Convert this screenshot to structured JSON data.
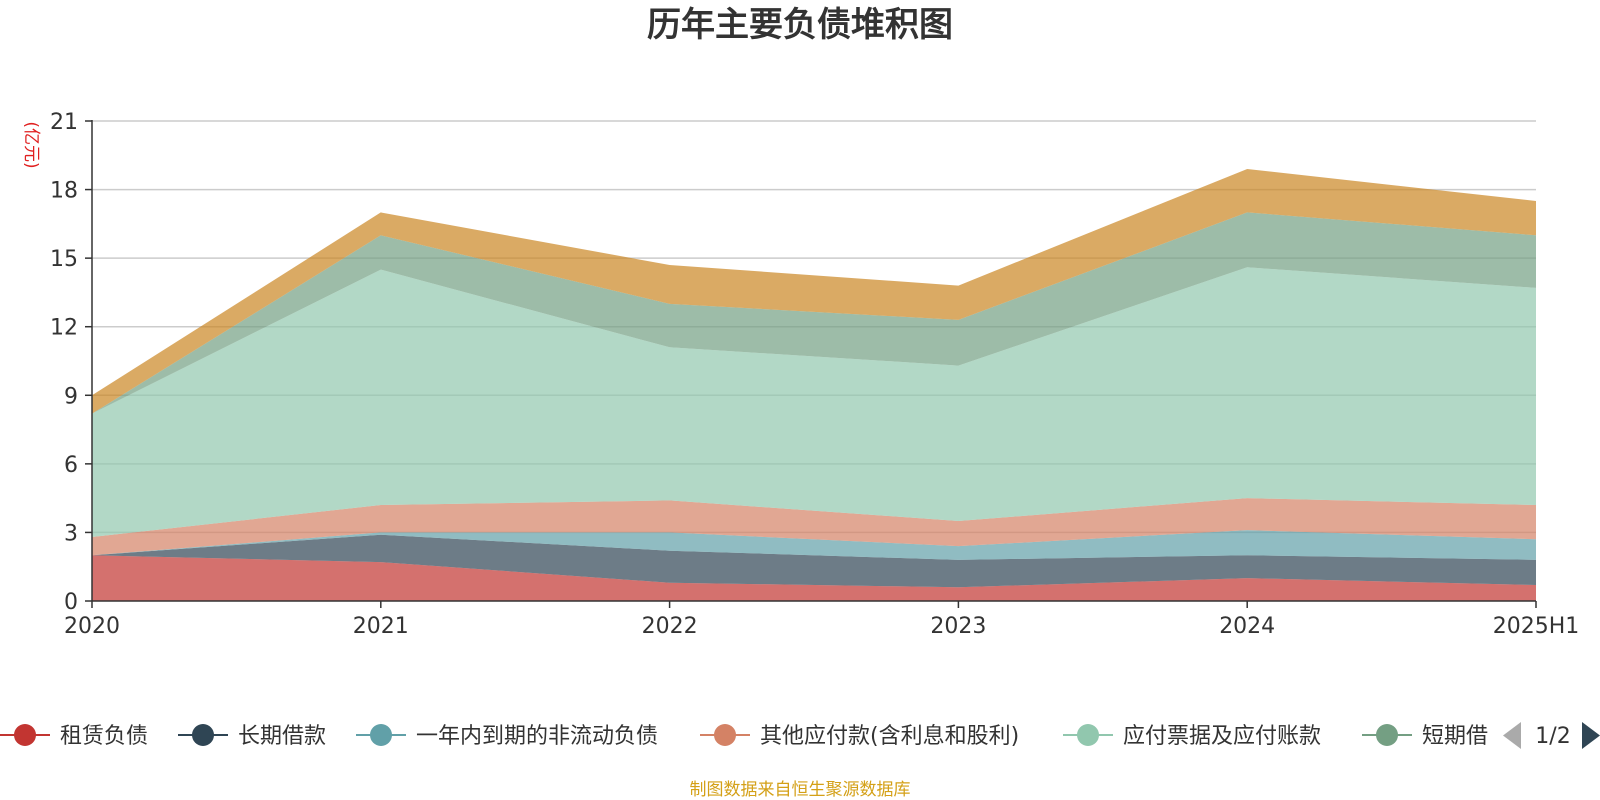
{
  "chart_data": {
    "type": "area",
    "stacked": true,
    "title": "历年主要负债堆积图",
    "unit_label": "(亿元)",
    "categories": [
      "2020",
      "2021",
      "2022",
      "2023",
      "2024",
      "2025H1"
    ],
    "ylim": [
      0,
      21
    ],
    "yticks": [
      "0",
      "3",
      "6",
      "9",
      "12",
      "15",
      "18",
      "21"
    ],
    "grid": true,
    "series": [
      {
        "name": "租赁负债",
        "color": "#c23531",
        "values": [
          2.0,
          1.7,
          0.8,
          0.6,
          1.0,
          0.7
        ]
      },
      {
        "name": "长期借款",
        "color": "#2f4554",
        "values": [
          0.0,
          1.2,
          1.4,
          1.2,
          1.0,
          1.1
        ]
      },
      {
        "name": "一年内到期的非流动负债",
        "color": "#61a0a8",
        "values": [
          0.0,
          0.1,
          0.8,
          0.6,
          1.1,
          0.9
        ]
      },
      {
        "name": "其他应付款(含利息和股利)",
        "color": "#d48265",
        "values": [
          0.8,
          1.2,
          1.4,
          1.1,
          1.4,
          1.5
        ]
      },
      {
        "name": "应付票据及应付账款",
        "color": "#91c7ae",
        "values": [
          5.4,
          10.3,
          6.7,
          6.8,
          10.1,
          9.5
        ]
      },
      {
        "name": "短期借款",
        "color": "#749f83",
        "values": [
          0.0,
          1.5,
          1.9,
          2.0,
          2.4,
          2.3
        ]
      },
      {
        "name": "",
        "color": "#ca8622",
        "values": [
          0.8,
          1.0,
          1.7,
          1.5,
          1.9,
          1.5
        ]
      }
    ],
    "legend_placement": "bottom"
  },
  "legend": {
    "items": [
      {
        "label": "租赁负债",
        "color": "#c23531"
      },
      {
        "label": "长期借款",
        "color": "#2f4554"
      },
      {
        "label": "一年内到期的非流动负债",
        "color": "#61a0a8"
      },
      {
        "label": "其他应付款(含利息和股利)",
        "color": "#d48265"
      },
      {
        "label": "应付票据及应付账款",
        "color": "#91c7ae"
      },
      {
        "label": "短期借",
        "color": "#749f83"
      }
    ],
    "page_indicator": "1/2",
    "prev_color": "#aaaaaa",
    "next_color": "#2f4554"
  },
  "source_note": "制图数据来自恒生聚源数据库"
}
